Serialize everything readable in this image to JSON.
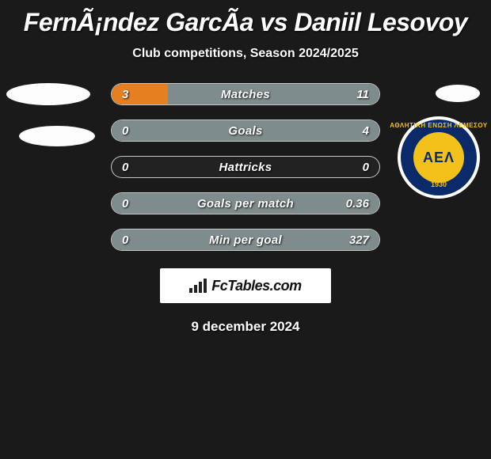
{
  "title": "FernÃ¡ndez GarcÃ­a vs Daniil Lesovoy",
  "subtitle": "Club competitions, Season 2024/2025",
  "date": "9 december 2024",
  "footer_brand_main": "FcTables",
  "footer_brand_suffix": ".com",
  "colors": {
    "background": "#1a1a1a",
    "left_bar": "#e67e22",
    "right_bar": "#7f8c8d",
    "track_border": "rgba(255,255,255,0.75)",
    "text": "#ffffff",
    "crest_outer": "#ffffff",
    "crest_ring": "#0a2a6a",
    "crest_inner": "#f2c21a"
  },
  "crest": {
    "ring_text": "ΑΘΛΗΤΙΚΗ ΕΝΩΣΗ ΛΕΜΕΣΟΥ",
    "center_text": "ΑΕΛ",
    "year": "1930"
  },
  "typography": {
    "title_fontsize": 32,
    "subtitle_fontsize": 16,
    "stat_label_fontsize": 15,
    "date_fontsize": 17
  },
  "stats": {
    "rows": [
      {
        "label": "Matches",
        "left": "3",
        "right": "11",
        "left_pct": 21,
        "right_pct": 79
      },
      {
        "label": "Goals",
        "left": "0",
        "right": "4",
        "left_pct": 0,
        "right_pct": 100
      },
      {
        "label": "Hattricks",
        "left": "0",
        "right": "0",
        "left_pct": 0,
        "right_pct": 0
      },
      {
        "label": "Goals per match",
        "left": "0",
        "right": "0.36",
        "left_pct": 0,
        "right_pct": 100
      },
      {
        "label": "Min per goal",
        "left": "0",
        "right": "327",
        "left_pct": 0,
        "right_pct": 100
      }
    ]
  }
}
